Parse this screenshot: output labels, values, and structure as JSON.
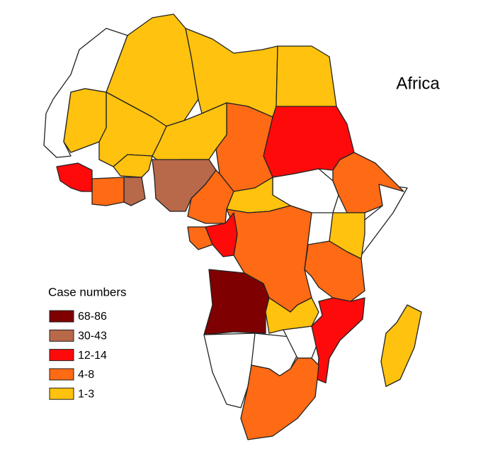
{
  "title": "Africa",
  "legend": {
    "title": "Case numbers",
    "items": [
      {
        "label": "68-86",
        "color": "#7f0000"
      },
      {
        "label": "30-43",
        "color": "#b8694a"
      },
      {
        "label": "12-14",
        "color": "#ff0a0a"
      },
      {
        "label": "4-8",
        "color": "#ff6a14"
      },
      {
        "label": "1-3",
        "color": "#ffc20e"
      }
    ]
  }
}
